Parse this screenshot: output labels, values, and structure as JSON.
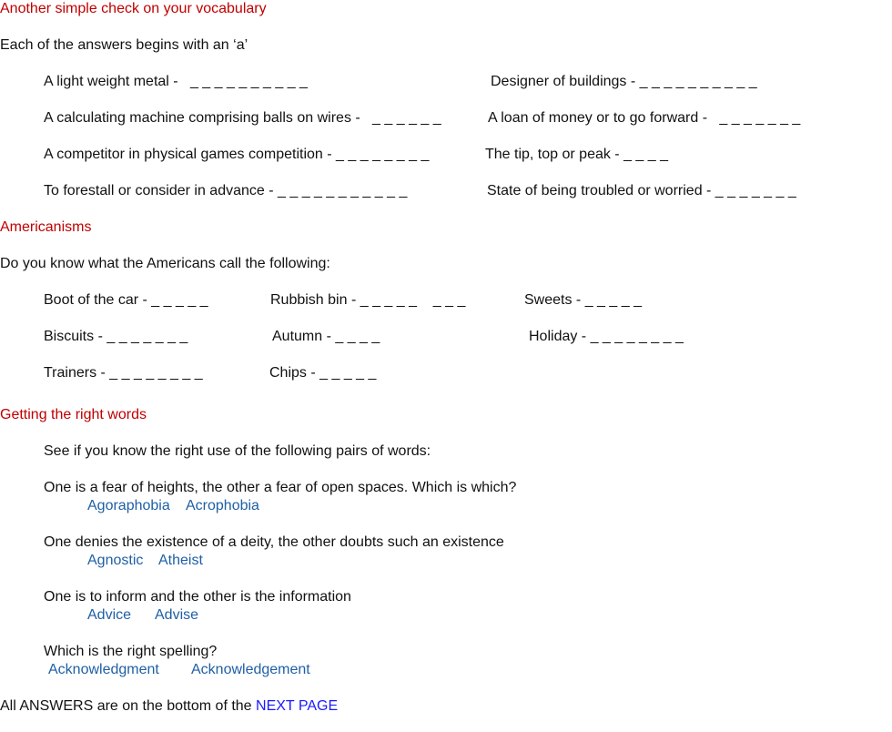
{
  "sections": {
    "vocab": {
      "title": "Another simple check on your vocabulary",
      "intro": "Each of the answers begins with an ‘a’",
      "clues": [
        "A light weight metal -   _ _ _ _ _ _ _ _ _ _",
        "Designer of buildings - _ _ _ _ _ _ _ _ _ _",
        "A calculating machine comprising balls on wires -   _ _ _ _ _ _",
        "A loan of money or to go forward -   _ _ _ _ _ _ _",
        "A competitor in physical games competition - _ _ _ _ _ _ _ _",
        "The tip, top or peak - _ _ _ _",
        "To forestall or consider in advance - _ _ _ _ _ _ _ _ _ _ _",
        "State of being troubled or worried - _ _ _ _ _ _ _"
      ]
    },
    "americanisms": {
      "title": "Americanisms",
      "intro": "Do you know what the Americans call the following:",
      "items": [
        "Boot of the car - _ _ _ _ _",
        "Rubbish bin - _ _ _ _ _    _ _ _",
        "Sweets - _ _ _ _ _",
        "Biscuits - _ _ _ _ _ _ _",
        "Autumn - _ _ _ _",
        "Holiday - _ _ _ _ _ _ _ _",
        "Trainers - _ _ _ _ _ _ _ _",
        "Chips - _ _ _ _ _"
      ]
    },
    "right_words": {
      "title": "Getting the right words",
      "intro": "See if you know the right use of the following pairs of words:",
      "questions": [
        {
          "prompt": "One is a fear of heights, the other a fear of open spaces. Which is which?",
          "a": "Agoraphobia",
          "b": "Acrophobia"
        },
        {
          "prompt": "One denies the existence of a deity, the other doubts such an existence",
          "a": "Agnostic",
          "b": "Atheist"
        },
        {
          "prompt": "One is to inform and the other is the information",
          "a": "Advice",
          "b": "Advise"
        },
        {
          "prompt": "Which is the right spelling?",
          "a": "Acknowledgment",
          "b": "Acknowledgement"
        }
      ]
    }
  },
  "footer": {
    "text": "All ANSWERS are on the bottom of the ",
    "link": "NEXT PAGE"
  }
}
